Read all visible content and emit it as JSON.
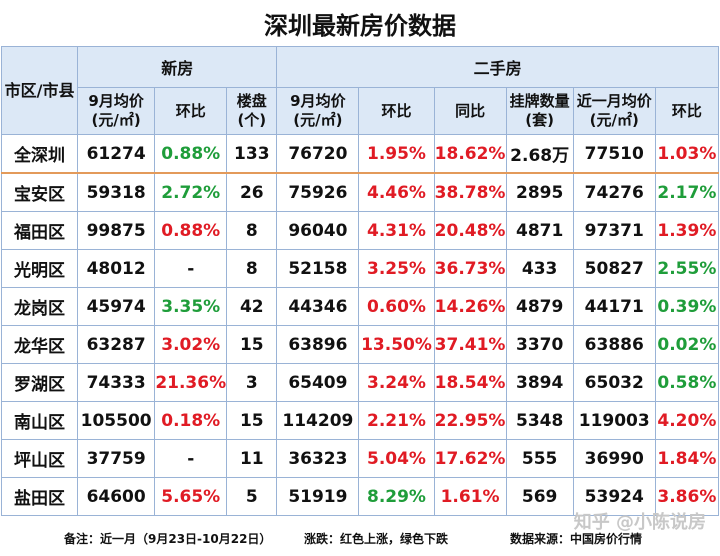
{
  "title": "深圳最新房价数据",
  "header": {
    "region": "市区/市县",
    "new_group": "新房",
    "second_group": "二手房",
    "new_cols": [
      "9月均价(元/㎡)",
      "环比",
      "楼盘(个)"
    ],
    "second_cols": [
      "9月均价(元/㎡)",
      "环比",
      "同比",
      "挂牌数量(套)",
      "近一月均价(元/㎡)",
      "环比"
    ]
  },
  "rows": [
    {
      "name": "全深圳",
      "new_price": "61274",
      "new_mom": "0.88%",
      "projects": "133",
      "sh_price": "76720",
      "sh_mom": "1.95%",
      "sh_yoy": "18.62%",
      "listings": "2.68万",
      "recent_price": "77510",
      "recent_mom": "1.03%"
    },
    {
      "name": "宝安区",
      "new_price": "59318",
      "new_mom": "2.72%",
      "projects": "26",
      "sh_price": "75926",
      "sh_mom": "4.46%",
      "sh_yoy": "38.78%",
      "listings": "2895",
      "recent_price": "74276",
      "recent_mom": "2.17%"
    },
    {
      "name": "福田区",
      "new_price": "99875",
      "new_mom": "0.88%",
      "projects": "8",
      "sh_price": "96040",
      "sh_mom": "4.31%",
      "sh_yoy": "20.48%",
      "listings": "4871",
      "recent_price": "97371",
      "recent_mom": "1.39%"
    },
    {
      "name": "光明区",
      "new_price": "48012",
      "new_mom": "-",
      "projects": "8",
      "sh_price": "52158",
      "sh_mom": "3.25%",
      "sh_yoy": "36.73%",
      "listings": "433",
      "recent_price": "50827",
      "recent_mom": "2.55%"
    },
    {
      "name": "龙岗区",
      "new_price": "45974",
      "new_mom": "3.35%",
      "projects": "42",
      "sh_price": "44346",
      "sh_mom": "0.60%",
      "sh_yoy": "14.26%",
      "listings": "4879",
      "recent_price": "44171",
      "recent_mom": "0.39%"
    },
    {
      "name": "龙华区",
      "new_price": "63287",
      "new_mom": "3.02%",
      "projects": "15",
      "sh_price": "63896",
      "sh_mom": "13.50%",
      "sh_yoy": "37.41%",
      "listings": "3370",
      "recent_price": "63886",
      "recent_mom": "0.02%"
    },
    {
      "name": "罗湖区",
      "new_price": "74333",
      "new_mom": "21.36%",
      "projects": "3",
      "sh_price": "65409",
      "sh_mom": "3.24%",
      "sh_yoy": "18.54%",
      "listings": "3894",
      "recent_price": "65032",
      "recent_mom": "0.58%"
    },
    {
      "name": "南山区",
      "new_price": "105500",
      "new_mom": "0.18%",
      "projects": "15",
      "sh_price": "114209",
      "sh_mom": "2.21%",
      "sh_yoy": "22.95%",
      "listings": "5348",
      "recent_price": "119003",
      "recent_mom": "4.20%"
    },
    {
      "name": "坪山区",
      "new_price": "37759",
      "new_mom": "-",
      "projects": "11",
      "sh_price": "36323",
      "sh_mom": "5.04%",
      "sh_yoy": "17.62%",
      "listings": "555",
      "recent_price": "36990",
      "recent_mom": "1.84%"
    },
    {
      "name": "盐田区",
      "new_price": "64600",
      "new_mom": "5.65%",
      "projects": "5",
      "sh_price": "51919",
      "sh_mom": "8.29%",
      "sh_yoy": "1.61%",
      "listings": "569",
      "recent_price": "53924",
      "recent_mom": "3.86%"
    }
  ],
  "colors": {
    "new_mom": [
      "green",
      "green",
      "red",
      "black",
      "green",
      "red",
      "red",
      "red",
      "black",
      "red"
    ],
    "sh_mom": [
      "red",
      "red",
      "red",
      "red",
      "red",
      "red",
      "red",
      "red",
      "red",
      "green"
    ],
    "sh_yoy": [
      "red",
      "red",
      "red",
      "red",
      "red",
      "red",
      "red",
      "red",
      "red",
      "red"
    ],
    "recent_mom": [
      "red",
      "green",
      "red",
      "green",
      "green",
      "green",
      "green",
      "red",
      "red",
      "red"
    ]
  },
  "footer": {
    "note": "备注：近一月（9月23日-10月22日）",
    "legend": "涨跌：红色上涨，绿色下跌",
    "source": "数据来源：中国房价行情"
  },
  "watermark": "知乎 @小陈说房"
}
